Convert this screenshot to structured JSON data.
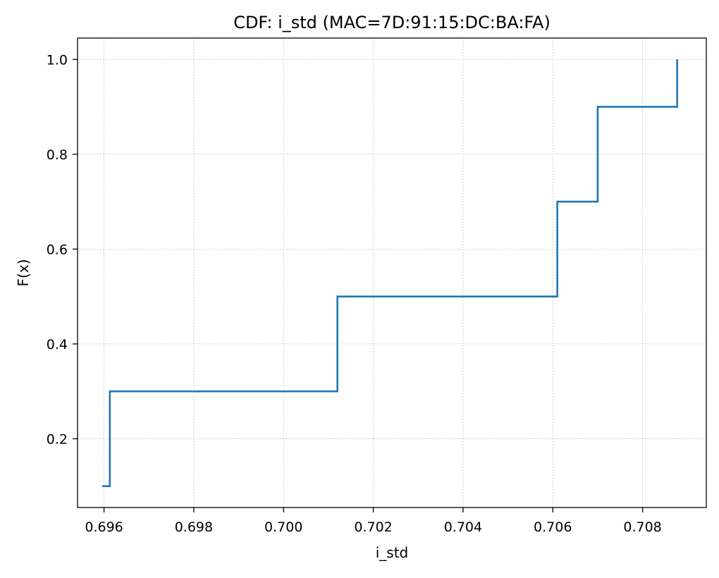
{
  "chart_data": {
    "type": "line",
    "drawstyle": "steps-post",
    "title": "CDF: i_std (MAC=7D:91:15:DC:BA:FA)",
    "xlabel": "i_std",
    "ylabel": "F(x)",
    "xlim": [
      0.69541,
      0.70942
    ],
    "ylim": [
      0.055,
      1.045
    ],
    "xticks": [
      0.696,
      0.698,
      0.7,
      0.702,
      0.704,
      0.706,
      0.708
    ],
    "xtick_labels": [
      "0.696",
      "0.698",
      "0.700",
      "0.702",
      "0.704",
      "0.706",
      "0.708"
    ],
    "yticks": [
      0.2,
      0.4,
      0.6,
      0.8,
      1.0
    ],
    "ytick_labels": [
      "0.2",
      "0.4",
      "0.6",
      "0.8",
      "1.0"
    ],
    "grid": true,
    "series": [
      {
        "color": "#1f77b4",
        "x": [
          0.69596,
          0.69613,
          0.7012,
          0.7061,
          0.707,
          0.70877
        ],
        "y": [
          0.1,
          0.3,
          0.5,
          0.7,
          0.9,
          1.0
        ]
      }
    ]
  }
}
